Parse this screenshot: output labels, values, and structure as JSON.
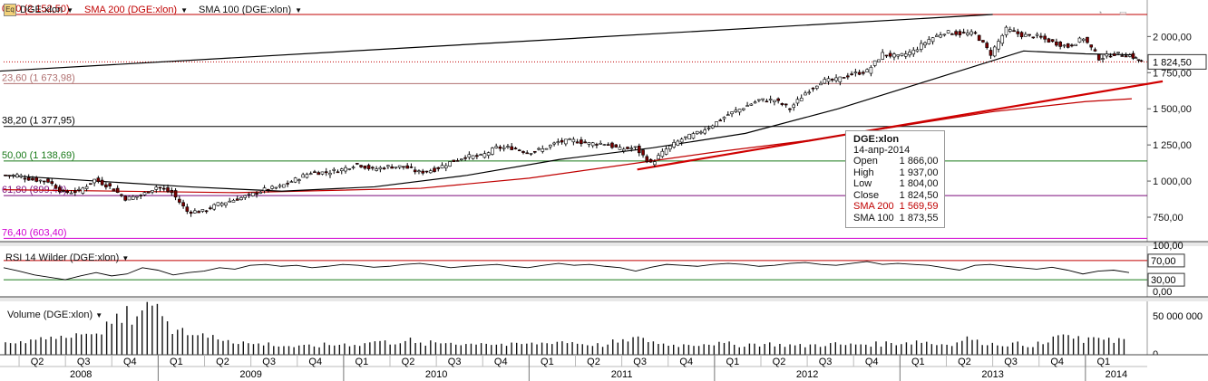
{
  "header": {
    "symbol_label": "DGE:xlon",
    "sma200_label": "SMA 200 (DGE:xlon)",
    "sma100_label": "SMA 100 (DGE:xlon)"
  },
  "chart_data": {
    "type": "candlestick",
    "x_axis": {
      "quarters": [
        "Q2",
        "Q3",
        "Q4",
        "Q1",
        "Q2",
        "Q3",
        "Q4",
        "Q1",
        "Q2",
        "Q3",
        "Q4",
        "Q1",
        "Q2",
        "Q3",
        "Q4",
        "Q1",
        "Q2",
        "Q3",
        "Q4",
        "Q1",
        "Q2",
        "Q3",
        "Q4",
        "Q1"
      ],
      "years": [
        "2008",
        "2009",
        "2010",
        "2011",
        "2012",
        "2013",
        "2014"
      ]
    },
    "price_axis": {
      "ticks": [
        {
          "value": 750,
          "label": "750,00"
        },
        {
          "value": 1000,
          "label": "1 000,00"
        },
        {
          "value": 1250,
          "label": "1 250,00"
        },
        {
          "value": 1500,
          "label": "1 500,00"
        },
        {
          "value": 1750,
          "label": "1 750,00"
        },
        {
          "value": 2000,
          "label": "2 000,00"
        }
      ],
      "last_price_label": "1 824,50",
      "last_price": 1824.5
    },
    "fibonacci_levels": [
      {
        "label": "0,00 (2 152,50)",
        "value": 2152.5,
        "color": "#c00000"
      },
      {
        "label": "23,60 (1 673,98)",
        "value": 1673.98,
        "color": "#b07070"
      },
      {
        "label": "38,20 (1 377,95)",
        "value": 1377.95,
        "color": "#000000"
      },
      {
        "label": "50,00 (1 138,69)",
        "value": 1138.69,
        "color": "#1a7a1a"
      },
      {
        "label": "61,80 (899,43)",
        "value": 899.43,
        "color": "#7a0a7a"
      },
      {
        "label": "76,40 (603,40)",
        "value": 603.4,
        "color": "#d000d0"
      }
    ],
    "tooltip": {
      "title": "DGE:xlon",
      "date": "14-апр-2014",
      "rows": [
        {
          "label": "Open",
          "value": "1 866,00"
        },
        {
          "label": "High",
          "value": "1 937,00"
        },
        {
          "label": "Low",
          "value": "1 804,00"
        },
        {
          "label": "Close",
          "value": "1 824,50"
        },
        {
          "label": "SMA 200",
          "value": "1 569,59"
        },
        {
          "label": "SMA 100",
          "value": "1 873,55"
        }
      ]
    },
    "close_series_monthly": [
      {
        "date": "2008-03",
        "value": 1040
      },
      {
        "date": "2008-04",
        "value": 1010
      },
      {
        "date": "2008-05",
        "value": 1000
      },
      {
        "date": "2008-06",
        "value": 920
      },
      {
        "date": "2008-07",
        "value": 930
      },
      {
        "date": "2008-08",
        "value": 1010
      },
      {
        "date": "2008-09",
        "value": 960
      },
      {
        "date": "2008-10",
        "value": 880
      },
      {
        "date": "2008-11",
        "value": 900
      },
      {
        "date": "2008-12",
        "value": 960
      },
      {
        "date": "2009-01",
        "value": 920
      },
      {
        "date": "2009-02",
        "value": 790
      },
      {
        "date": "2009-03",
        "value": 790
      },
      {
        "date": "2009-04",
        "value": 840
      },
      {
        "date": "2009-05",
        "value": 870
      },
      {
        "date": "2009-06",
        "value": 900
      },
      {
        "date": "2009-07",
        "value": 940
      },
      {
        "date": "2009-08",
        "value": 960
      },
      {
        "date": "2009-09",
        "value": 1010
      },
      {
        "date": "2009-10",
        "value": 1060
      },
      {
        "date": "2009-11",
        "value": 1060
      },
      {
        "date": "2009-12",
        "value": 1080
      },
      {
        "date": "2010-01",
        "value": 1120
      },
      {
        "date": "2010-02",
        "value": 1080
      },
      {
        "date": "2010-03",
        "value": 1100
      },
      {
        "date": "2010-04",
        "value": 1100
      },
      {
        "date": "2010-05",
        "value": 1060
      },
      {
        "date": "2010-06",
        "value": 1080
      },
      {
        "date": "2010-07",
        "value": 1130
      },
      {
        "date": "2010-08",
        "value": 1170
      },
      {
        "date": "2010-09",
        "value": 1170
      },
      {
        "date": "2010-10",
        "value": 1230
      },
      {
        "date": "2010-11",
        "value": 1230
      },
      {
        "date": "2010-12",
        "value": 1200
      },
      {
        "date": "2011-01",
        "value": 1220
      },
      {
        "date": "2011-02",
        "value": 1270
      },
      {
        "date": "2011-03",
        "value": 1280
      },
      {
        "date": "2011-04",
        "value": 1260
      },
      {
        "date": "2011-05",
        "value": 1260
      },
      {
        "date": "2011-06",
        "value": 1220
      },
      {
        "date": "2011-07",
        "value": 1230
      },
      {
        "date": "2011-08",
        "value": 1120
      },
      {
        "date": "2011-09",
        "value": 1220
      },
      {
        "date": "2011-10",
        "value": 1290
      },
      {
        "date": "2011-11",
        "value": 1330
      },
      {
        "date": "2011-12",
        "value": 1390
      },
      {
        "date": "2012-01",
        "value": 1460
      },
      {
        "date": "2012-02",
        "value": 1510
      },
      {
        "date": "2012-03",
        "value": 1560
      },
      {
        "date": "2012-04",
        "value": 1560
      },
      {
        "date": "2012-05",
        "value": 1500
      },
      {
        "date": "2012-06",
        "value": 1610
      },
      {
        "date": "2012-07",
        "value": 1690
      },
      {
        "date": "2012-08",
        "value": 1700
      },
      {
        "date": "2012-09",
        "value": 1740
      },
      {
        "date": "2012-10",
        "value": 1760
      },
      {
        "date": "2012-11",
        "value": 1880
      },
      {
        "date": "2012-12",
        "value": 1860
      },
      {
        "date": "2013-01",
        "value": 1900
      },
      {
        "date": "2013-02",
        "value": 1980
      },
      {
        "date": "2013-03",
        "value": 2030
      },
      {
        "date": "2013-04",
        "value": 2020
      },
      {
        "date": "2013-05",
        "value": 2020
      },
      {
        "date": "2013-06",
        "value": 1880
      },
      {
        "date": "2013-07",
        "value": 2050
      },
      {
        "date": "2013-08",
        "value": 2010
      },
      {
        "date": "2013-09",
        "value": 2000
      },
      {
        "date": "2013-10",
        "value": 1960
      },
      {
        "date": "2013-11",
        "value": 1930
      },
      {
        "date": "2013-12",
        "value": 1990
      },
      {
        "date": "2014-01",
        "value": 1850
      },
      {
        "date": "2014-02",
        "value": 1880
      },
      {
        "date": "2014-03",
        "value": 1870
      },
      {
        "date": "2014-04",
        "value": 1824.5
      }
    ],
    "sma200_series": [
      {
        "date": "2008-03",
        "value": 940
      },
      {
        "date": "2009-06",
        "value": 920
      },
      {
        "date": "2010-06",
        "value": 950
      },
      {
        "date": "2011-01",
        "value": 1020
      },
      {
        "date": "2011-07",
        "value": 1110
      },
      {
        "date": "2012-01",
        "value": 1200
      },
      {
        "date": "2012-07",
        "value": 1280
      },
      {
        "date": "2013-01",
        "value": 1380
      },
      {
        "date": "2013-07",
        "value": 1480
      },
      {
        "date": "2014-01",
        "value": 1550
      },
      {
        "date": "2014-04",
        "value": 1569.59
      }
    ],
    "sma100_series": [
      {
        "date": "2008-03",
        "value": 1040
      },
      {
        "date": "2008-09",
        "value": 1000
      },
      {
        "date": "2009-03",
        "value": 960
      },
      {
        "date": "2009-09",
        "value": 930
      },
      {
        "date": "2010-03",
        "value": 960
      },
      {
        "date": "2010-09",
        "value": 1040
      },
      {
        "date": "2011-03",
        "value": 1150
      },
      {
        "date": "2011-09",
        "value": 1230
      },
      {
        "date": "2012-03",
        "value": 1330
      },
      {
        "date": "2012-09",
        "value": 1500
      },
      {
        "date": "2013-03",
        "value": 1700
      },
      {
        "date": "2013-09",
        "value": 1900
      },
      {
        "date": "2014-01",
        "value": 1880
      },
      {
        "date": "2014-04",
        "value": 1873.55
      }
    ],
    "trendlines": [
      {
        "color": "#000000",
        "start": {
          "date": "2008-01",
          "value": 1750
        },
        "end": {
          "date": "2013-07",
          "value": 2152.5
        }
      },
      {
        "color": "#d00000",
        "start": {
          "date": "2011-08",
          "value": 1080
        },
        "end": {
          "date": "2014-06",
          "value": 1690
        }
      }
    ],
    "rsi": {
      "label": "RSI 14 Wilder (DGE:xlon)",
      "ticks": [
        "100,00",
        "0,00"
      ],
      "levels": [
        {
          "value": 70,
          "label": "70,00"
        },
        {
          "value": 30,
          "label": "30,00"
        }
      ],
      "values": [
        55,
        48,
        40,
        35,
        30,
        38,
        45,
        38,
        42,
        55,
        50,
        40,
        45,
        48,
        55,
        52,
        60,
        62,
        58,
        60,
        55,
        58,
        62,
        60,
        56,
        58,
        62,
        64,
        60,
        55,
        58,
        60,
        62,
        58,
        55,
        60,
        64,
        60,
        62,
        58,
        55,
        48,
        56,
        62,
        60,
        58,
        62,
        64,
        62,
        58,
        60,
        64,
        66,
        62,
        60,
        64,
        68,
        62,
        64,
        62,
        60,
        55,
        50,
        60,
        62,
        58,
        55,
        52,
        56,
        50,
        42,
        48,
        50,
        45
      ]
    },
    "volume": {
      "label": "Volume (DGE:xlon)",
      "ticks": [
        "50 000 000",
        "0"
      ],
      "values": [
        12,
        14,
        18,
        22,
        25,
        20,
        30,
        38,
        45,
        55,
        48,
        30,
        25,
        20,
        18,
        15,
        12,
        12,
        10,
        9,
        10,
        11,
        12,
        12,
        15,
        14,
        16,
        12,
        13,
        14,
        12,
        14,
        12,
        11,
        12,
        13,
        15,
        14,
        12,
        11,
        14,
        18,
        16,
        12,
        11,
        12,
        13,
        12,
        11,
        12,
        12,
        11,
        10,
        11,
        12,
        11,
        12,
        12,
        13,
        14,
        15,
        12,
        13,
        18,
        14,
        12,
        12,
        11,
        12,
        22,
        18,
        16,
        20,
        17
      ]
    }
  }
}
